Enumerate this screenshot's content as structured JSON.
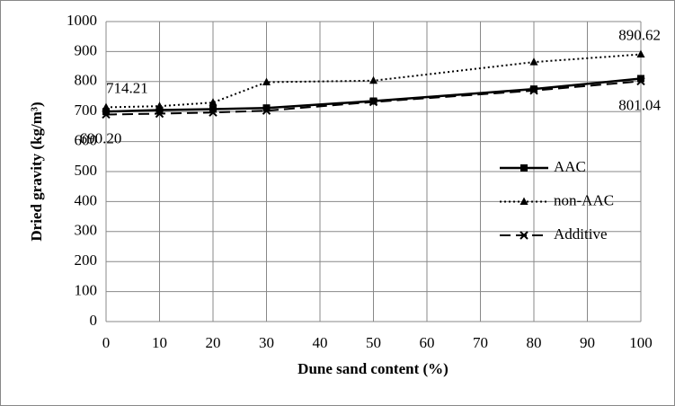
{
  "chart_data": {
    "type": "line",
    "xlabel": "Dune sand content (%)",
    "ylabel": "Dried gravity (kg/m³)",
    "x": [
      0,
      10,
      20,
      30,
      50,
      80,
      100
    ],
    "xlim": [
      0,
      100
    ],
    "xticks": [
      0,
      10,
      20,
      30,
      40,
      50,
      60,
      70,
      80,
      90,
      100
    ],
    "ylim": [
      0,
      1000
    ],
    "yticks": [
      0,
      100,
      200,
      300,
      400,
      500,
      600,
      700,
      800,
      900,
      1000
    ],
    "grid": true,
    "legend": "right",
    "series": [
      {
        "name": "AAC",
        "color": "#000000",
        "dash": "solid",
        "marker": "square",
        "values": [
          700,
          705,
          708,
          712,
          735,
          775,
          810
        ]
      },
      {
        "name": "non-AAC",
        "color": "#000000",
        "dash": "dotted",
        "marker": "triangle",
        "values": [
          714.21,
          718,
          730,
          798,
          803,
          865,
          890.62
        ],
        "value_labels": [
          "714.21",
          null,
          null,
          null,
          null,
          null,
          "890.62"
        ]
      },
      {
        "name": "Additive",
        "color": "#000000",
        "dash": "dashed",
        "marker": "x",
        "values": [
          690.2,
          693,
          697,
          703,
          732,
          770,
          801.04
        ],
        "value_labels": [
          "690.20",
          null,
          null,
          null,
          null,
          null,
          "801.04"
        ]
      }
    ]
  }
}
